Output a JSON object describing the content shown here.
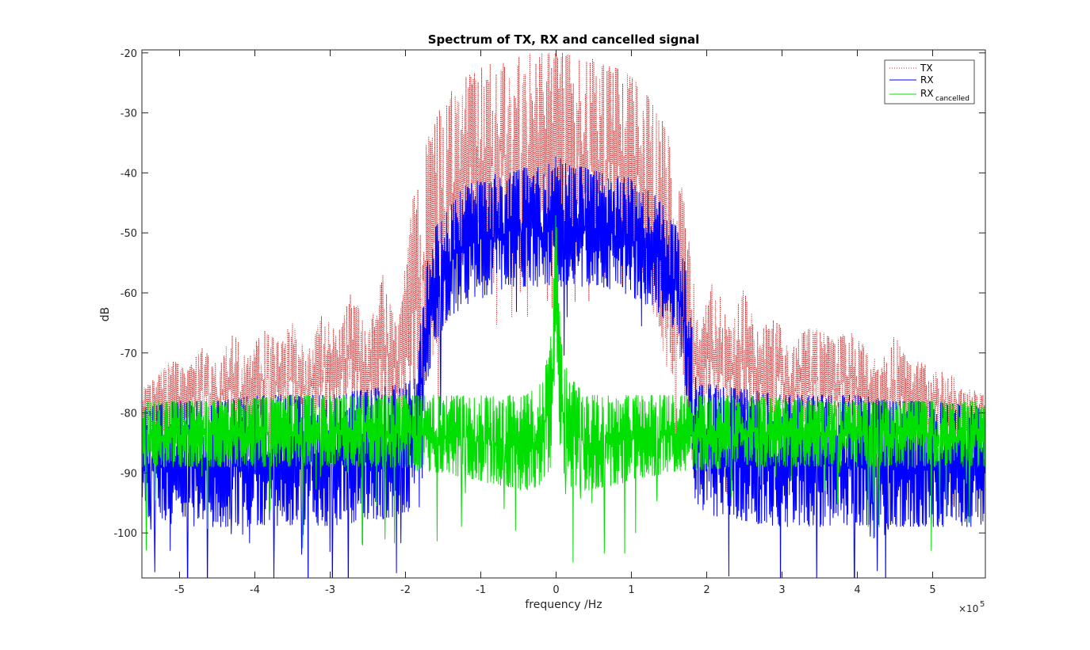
{
  "chart_data": {
    "type": "line",
    "title": "Spectrum of TX, RX and cancelled signal",
    "xlabel": "frequency /Hz",
    "ylabel": "dB",
    "x_multiplier_base": "×10",
    "x_multiplier_exp": "5",
    "xlim": [
      -5.5,
      5.7
    ],
    "ylim": [
      -107.5,
      -19.5
    ],
    "xticks": [
      -5,
      -4,
      -3,
      -2,
      -1,
      0,
      1,
      2,
      3,
      4,
      5
    ],
    "xtick_labels": [
      "-5",
      "-4",
      "-3",
      "-2",
      "-1",
      "0",
      "1",
      "2",
      "3",
      "4",
      "5"
    ],
    "yticks": [
      -100,
      -90,
      -80,
      -70,
      -60,
      -50,
      -40,
      -30,
      -20
    ],
    "ytick_labels": [
      "-100",
      "-90",
      "-80",
      "-70",
      "-60",
      "-50",
      "-40",
      "-30",
      "-20"
    ],
    "grid": false,
    "legend_position": "top-right",
    "series": [
      {
        "name": "TX",
        "legend_label": "TX",
        "color": "#cc2a2a",
        "style": "dotted",
        "envelope": {
          "x": [
            -5.5,
            -5.3,
            -5.1,
            -4.9,
            -4.7,
            -4.5,
            -4.3,
            -4.1,
            -3.9,
            -3.7,
            -3.5,
            -3.3,
            -3.1,
            -2.9,
            -2.7,
            -2.5,
            -2.3,
            -2.1,
            -1.9,
            -1.7,
            -1.5,
            -1.3,
            -1.1,
            -0.9,
            -0.7,
            -0.5,
            -0.3,
            -0.1,
            0.1,
            0.3,
            0.5,
            0.7,
            0.9,
            1.1,
            1.3,
            1.5,
            1.7,
            1.9,
            2.1,
            2.3,
            2.5,
            2.7,
            2.9,
            3.1,
            3.3,
            3.5,
            3.7,
            3.9,
            4.1,
            4.3,
            4.5,
            4.7,
            4.9,
            5.1,
            5.3,
            5.5,
            5.7
          ],
          "upper": [
            -76,
            -74,
            -71,
            -73,
            -69,
            -72,
            -66,
            -71,
            -66,
            -68,
            -65,
            -70,
            -63,
            -67,
            -59,
            -67,
            -57,
            -66,
            -44,
            -34,
            -28,
            -25,
            -23,
            -22,
            -21,
            -20.5,
            -20,
            -20,
            -20,
            -20.5,
            -21,
            -22,
            -23,
            -25,
            -28,
            -34,
            -44,
            -66,
            -57,
            -66,
            -59,
            -67,
            -63,
            -70,
            -66,
            -66,
            -68,
            -66,
            -69,
            -72,
            -67,
            -72,
            -71,
            -73,
            -74,
            -76,
            -77
          ],
          "lower": [
            -84,
            -84,
            -84,
            -83,
            -83,
            -83,
            -83,
            -83,
            -82,
            -82,
            -82,
            -82,
            -81,
            -81,
            -81,
            -81,
            -80,
            -80,
            -80,
            -74,
            -64,
            -56,
            -54,
            -52,
            -51,
            -50,
            -50,
            -50,
            -50,
            -50,
            -51,
            -52,
            -54,
            -56,
            -64,
            -74,
            -80,
            -80,
            -80,
            -81,
            -81,
            -81,
            -81,
            -82,
            -82,
            -82,
            -82,
            -82,
            -83,
            -83,
            -83,
            -83,
            -83,
            -84,
            -84,
            -84,
            -84
          ]
        }
      },
      {
        "name": "RX",
        "legend_label": "RX",
        "color": "#0000ff",
        "style": "solid",
        "envelope": {
          "x": [
            -5.5,
            -5.0,
            -4.5,
            -4.0,
            -3.5,
            -3.0,
            -2.5,
            -2.0,
            -1.85,
            -1.75,
            -1.6,
            -1.4,
            -1.2,
            -1.0,
            -0.8,
            -0.6,
            -0.4,
            -0.2,
            0.0,
            0.2,
            0.4,
            0.6,
            0.8,
            1.0,
            1.2,
            1.4,
            1.6,
            1.75,
            1.85,
            2.0,
            2.5,
            3.0,
            3.5,
            4.0,
            4.5,
            5.0,
            5.7
          ],
          "upper": [
            -79,
            -78,
            -78,
            -77,
            -77,
            -77,
            -76,
            -75,
            -74,
            -57,
            -49,
            -45,
            -42,
            -41,
            -40,
            -40,
            -39,
            -39,
            -37,
            -39,
            -39,
            -40,
            -40,
            -41,
            -42,
            -45,
            -49,
            -57,
            -74,
            -75,
            -76,
            -77,
            -77,
            -77,
            -78,
            -78,
            -79
          ],
          "lower": [
            -99,
            -99,
            -99,
            -99,
            -99,
            -99,
            -98,
            -97,
            -95,
            -78,
            -68,
            -64,
            -62,
            -61,
            -60,
            -59,
            -59,
            -59,
            -59,
            -59,
            -59,
            -59,
            -60,
            -61,
            -62,
            -64,
            -68,
            -78,
            -95,
            -97,
            -98,
            -99,
            -99,
            -99,
            -99,
            -99,
            -99
          ]
        }
      },
      {
        "name": "RX_cancelled",
        "legend_label": "RX",
        "legend_sub": "cancelled",
        "color": "#00e000",
        "style": "solid",
        "envelope": {
          "x": [
            -5.5,
            -4.5,
            -3.5,
            -2.5,
            -1.5,
            -0.8,
            -0.4,
            -0.2,
            -0.1,
            -0.05,
            0.0,
            0.05,
            0.1,
            0.2,
            0.4,
            0.8,
            1.5,
            2.5,
            3.5,
            4.5,
            5.7
          ],
          "upper": [
            -78,
            -78,
            -77,
            -77,
            -77,
            -77,
            -77,
            -74,
            -70,
            -64,
            -45,
            -64,
            -70,
            -74,
            -77,
            -77,
            -77,
            -77,
            -78,
            -78,
            -78
          ],
          "lower": [
            -89,
            -89,
            -89,
            -89,
            -90,
            -92,
            -93,
            -92,
            -90,
            -85,
            -68,
            -85,
            -90,
            -92,
            -93,
            -92,
            -90,
            -89,
            -89,
            -89,
            -89
          ]
        }
      }
    ]
  }
}
